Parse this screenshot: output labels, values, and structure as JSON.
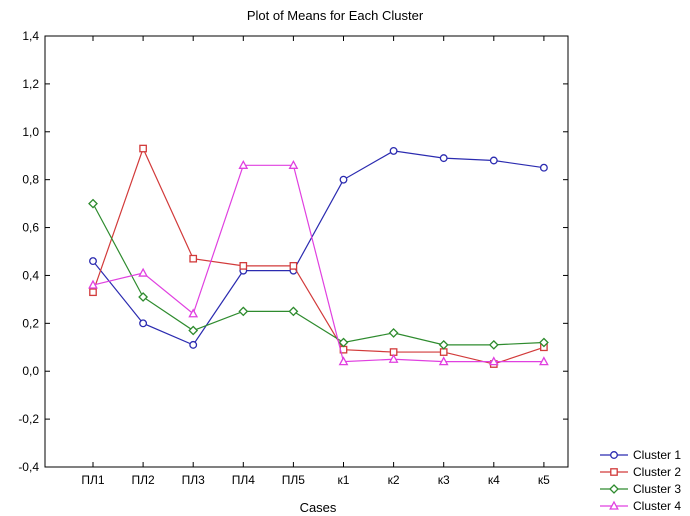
{
  "chart_data": {
    "type": "line",
    "title": "Plot of Means for Each Cluster",
    "xlabel": "Cases",
    "ylabel": "",
    "categories": [
      "ПЛ1",
      "ПЛ2",
      "ПЛ3",
      "ПЛ4",
      "ПЛ5",
      "к1",
      "к2",
      "к3",
      "к4",
      "к5"
    ],
    "ylim": [
      -0.4,
      1.4
    ],
    "yticks": [
      -0.4,
      -0.2,
      0.0,
      0.2,
      0.4,
      0.6,
      0.8,
      1.0,
      1.2,
      1.4
    ],
    "ytick_labels": [
      "-0,4",
      "-0,2",
      "0,0",
      "0,2",
      "0,4",
      "0,6",
      "0,8",
      "1,0",
      "1,2",
      "1,4"
    ],
    "grid": false,
    "legend_position": "bottom-right",
    "series": [
      {
        "name": "Cluster  1",
        "color": "#2b2bb0",
        "marker": "circle",
        "values": [
          0.46,
          0.2,
          0.11,
          0.42,
          0.42,
          0.8,
          0.92,
          0.89,
          0.88,
          0.85
        ]
      },
      {
        "name": "Cluster  2",
        "color": "#d23a3a",
        "marker": "square",
        "values": [
          0.33,
          0.93,
          0.47,
          0.44,
          0.44,
          0.09,
          0.08,
          0.08,
          0.03,
          0.1
        ]
      },
      {
        "name": "Cluster  3",
        "color": "#2e8b2e",
        "marker": "diamond",
        "values": [
          0.7,
          0.31,
          0.17,
          0.25,
          0.25,
          0.12,
          0.16,
          0.11,
          0.11,
          0.12
        ]
      },
      {
        "name": "Cluster  4",
        "color": "#e040e0",
        "marker": "triangle",
        "values": [
          0.36,
          0.41,
          0.24,
          0.86,
          0.86,
          0.04,
          0.05,
          0.04,
          0.04,
          0.04
        ]
      }
    ]
  }
}
